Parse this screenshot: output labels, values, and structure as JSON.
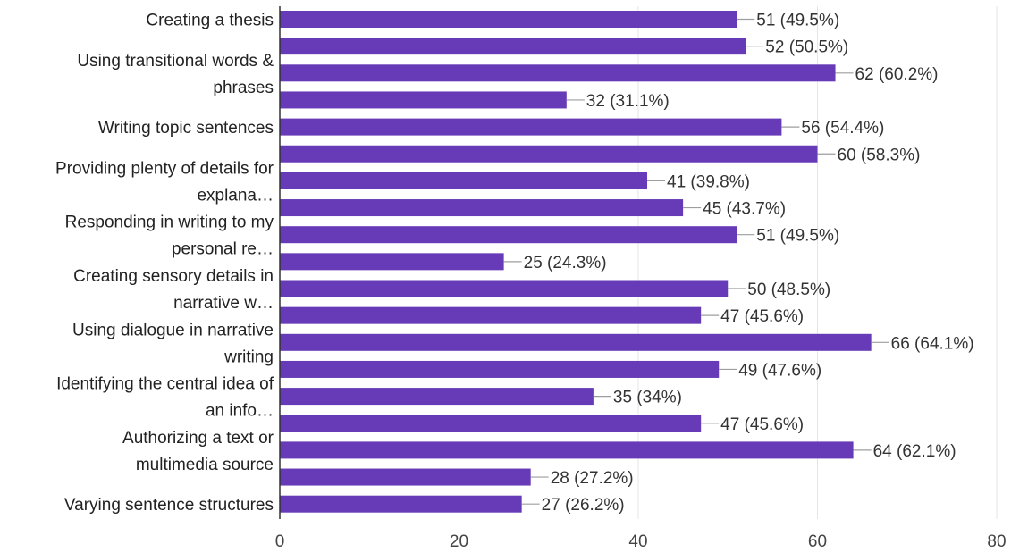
{
  "chart_data": {
    "type": "bar",
    "orientation": "horizontal",
    "color": "#673ab7",
    "grid": true,
    "xlim": [
      0,
      80
    ],
    "xticks": [
      "0",
      "20",
      "40",
      "60",
      "80"
    ],
    "bars": [
      {
        "value": 51,
        "label": "51 (49.5%)"
      },
      {
        "value": 52,
        "label": "52 (50.5%)"
      },
      {
        "value": 62,
        "label": "62 (60.2%)"
      },
      {
        "value": 32,
        "label": "32 (31.1%)"
      },
      {
        "value": 56,
        "label": "56 (54.4%)"
      },
      {
        "value": 60,
        "label": "60 (58.3%)"
      },
      {
        "value": 41,
        "label": "41 (39.8%)"
      },
      {
        "value": 45,
        "label": "45 (43.7%)"
      },
      {
        "value": 51,
        "label": "51 (49.5%)"
      },
      {
        "value": 25,
        "label": "25 (24.3%)"
      },
      {
        "value": 50,
        "label": "50 (48.5%)"
      },
      {
        "value": 47,
        "label": "47 (45.6%)"
      },
      {
        "value": 66,
        "label": "66 (64.1%)"
      },
      {
        "value": 49,
        "label": "49 (47.6%)"
      },
      {
        "value": 35,
        "label": "35 (34%)"
      },
      {
        "value": 47,
        "label": "47 (45.6%)"
      },
      {
        "value": 64,
        "label": "64 (62.1%)"
      },
      {
        "value": 28,
        "label": "28 (27.2%)"
      },
      {
        "value": 27,
        "label": "27 (26.2%)"
      }
    ],
    "category_labels": [
      {
        "lines": [
          "Creating a thesis"
        ],
        "bar_index": 0
      },
      {
        "lines": [
          "Using transitional words &",
          "phrases"
        ],
        "bar_index": 2
      },
      {
        "lines": [
          "Writing topic sentences"
        ],
        "bar_index": 4
      },
      {
        "lines": [
          "Providing plenty of details for",
          "explana…"
        ],
        "bar_index": 6
      },
      {
        "lines": [
          "Responding in writing to my",
          "personal re…"
        ],
        "bar_index": 8
      },
      {
        "lines": [
          "Creating sensory details in",
          "narrative w…"
        ],
        "bar_index": 10
      },
      {
        "lines": [
          "Using dialogue in narrative",
          "writing"
        ],
        "bar_index": 12
      },
      {
        "lines": [
          "Identifying the central idea of",
          "an info…"
        ],
        "bar_index": 14
      },
      {
        "lines": [
          "Authorizing a text or",
          "multimedia source"
        ],
        "bar_index": 16
      },
      {
        "lines": [
          "Varying sentence structures"
        ],
        "bar_index": 18
      }
    ]
  }
}
